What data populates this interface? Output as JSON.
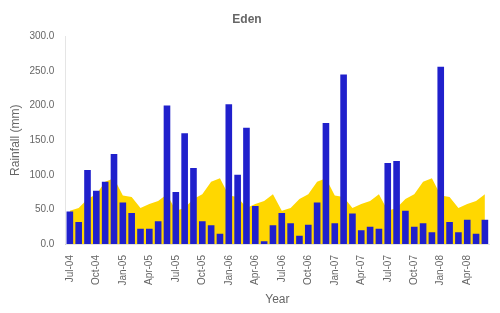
{
  "chart_data": {
    "type": "bar",
    "title": "Eden",
    "xlabel": "Year",
    "ylabel": "Rainfall (mm)",
    "categories": [
      "Jul-04",
      null,
      null,
      "Oct-04",
      null,
      null,
      "Jan-05",
      null,
      null,
      "Apr-05",
      null,
      null,
      "Jul-05",
      null,
      null,
      "Oct-05",
      null,
      null,
      "Jan-06",
      null,
      null,
      "Apr-06",
      null,
      null,
      "Jul-06",
      null,
      null,
      "Oct-06",
      null,
      null,
      "Jan-07",
      null,
      null,
      "Apr-07",
      null,
      null,
      "Jul-07",
      null,
      null,
      "Oct-07",
      null,
      null,
      "Jan-08",
      null,
      null,
      "Apr-08",
      null,
      null
    ],
    "series": [
      {
        "type": "area",
        "color": "#FFD700",
        "values": [
          48,
          52,
          65,
          72,
          90,
          95,
          70,
          68,
          52,
          58,
          62,
          72,
          48,
          52,
          65,
          72,
          90,
          95,
          70,
          68,
          52,
          58,
          62,
          72,
          48,
          52,
          65,
          72,
          90,
          95,
          70,
          68,
          52,
          58,
          62,
          72,
          48,
          52,
          65,
          72,
          90,
          95,
          70,
          68,
          52,
          58,
          62,
          72
        ]
      },
      {
        "type": "bar",
        "color": "#2020CC",
        "values": [
          47,
          32,
          107,
          77,
          90,
          130,
          60,
          45,
          22,
          22,
          33,
          200,
          75,
          160,
          110,
          33,
          27,
          15,
          202,
          100,
          168,
          55,
          4,
          27,
          45,
          30,
          12,
          28,
          60,
          175,
          30,
          245,
          44,
          20,
          25,
          22,
          117,
          120,
          48,
          25,
          30,
          17,
          256,
          32,
          17,
          35,
          15,
          35
        ]
      }
    ],
    "ylim": [
      0,
      300
    ],
    "yticks": [
      {
        "value": 0,
        "label": "0.0"
      },
      {
        "value": 50,
        "label": "50.0"
      },
      {
        "value": 100,
        "label": "100.0"
      },
      {
        "value": 150,
        "label": "150.0"
      },
      {
        "value": 200,
        "label": "200.0"
      },
      {
        "value": 250,
        "label": "250.0"
      },
      {
        "value": 300,
        "label": "300.0"
      }
    ],
    "grid": false
  }
}
